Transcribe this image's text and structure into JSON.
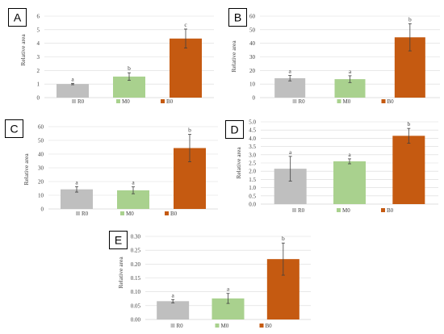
{
  "colors": {
    "R0": "#bfbfbf",
    "M0": "#a9d18e",
    "B0": "#c55a11"
  },
  "chart_data": [
    {
      "panel": "A",
      "type": "bar",
      "categories": [
        "R0",
        "M0",
        "B0"
      ],
      "values": [
        1.0,
        1.55,
        4.35
      ],
      "errors": [
        0.05,
        0.28,
        0.7
      ],
      "significance": [
        "a",
        "b",
        "c"
      ],
      "ylabel": "Relative area",
      "ylim": [
        0,
        6
      ],
      "yticks": [
        0,
        1,
        2,
        3,
        4,
        5,
        6
      ],
      "legend": [
        "R0",
        "M0",
        "B0"
      ],
      "legend_position": "bottom",
      "grid": true
    },
    {
      "panel": "B",
      "type": "bar",
      "categories": [
        "R0",
        "M0",
        "B0"
      ],
      "values": [
        14.3,
        13.6,
        44.4
      ],
      "errors": [
        2.0,
        2.5,
        10.0
      ],
      "significance": [
        "a",
        "a",
        "b"
      ],
      "ylabel": "Relative area",
      "ylim": [
        0,
        60
      ],
      "yticks": [
        0,
        10,
        20,
        30,
        40,
        50,
        60
      ],
      "legend": [
        "R0",
        "M0",
        "B0"
      ],
      "legend_position": "bottom",
      "grid": true
    },
    {
      "panel": "C",
      "type": "bar",
      "categories": [
        "R0",
        "M0",
        "B0"
      ],
      "values": [
        14.3,
        13.6,
        44.4
      ],
      "errors": [
        2.0,
        2.5,
        10.0
      ],
      "significance": [
        "a",
        "a",
        "b"
      ],
      "ylabel": "Relative area",
      "ylim": [
        0,
        60
      ],
      "yticks": [
        0,
        10,
        20,
        30,
        40,
        50,
        60
      ],
      "legend": [
        "R0",
        "M0",
        "B0"
      ],
      "legend_position": "bottom",
      "grid": true
    },
    {
      "panel": "D",
      "type": "bar",
      "categories": [
        "R0",
        "M0",
        "B0"
      ],
      "values": [
        2.15,
        2.6,
        4.15
      ],
      "errors": [
        0.75,
        0.15,
        0.45
      ],
      "significance": [
        "a",
        "a",
        "b"
      ],
      "ylabel": "Relative area",
      "ylim": [
        0,
        5.0
      ],
      "yticks": [
        "0.0",
        "0.5",
        "1.0",
        "1.5",
        "2.0",
        "2.5",
        "3.0",
        "3.5",
        "4.0",
        "4.5",
        "5.0"
      ],
      "legend": [
        "R0",
        "M0",
        "B0"
      ],
      "legend_position": "bottom",
      "grid": true
    },
    {
      "panel": "E",
      "type": "bar",
      "categories": [
        "R0",
        "M0",
        "B0"
      ],
      "values": [
        0.066,
        0.076,
        0.218
      ],
      "errors": [
        0.006,
        0.018,
        0.058
      ],
      "significance": [
        "a",
        "a",
        "b"
      ],
      "ylabel": "Relative area",
      "ylim": [
        0,
        0.3
      ],
      "yticks": [
        "0.00",
        "0.05",
        "0.10",
        "0.15",
        "0.20",
        "0.25",
        "0.30"
      ],
      "legend": [
        "R0",
        "M0",
        "B0"
      ],
      "legend_position": "bottom",
      "grid": true
    }
  ]
}
